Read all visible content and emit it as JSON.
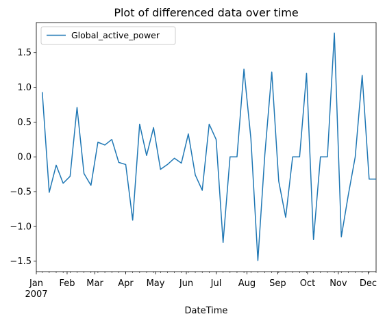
{
  "chart_data": {
    "type": "line",
    "title": "Plot of differenced data over time",
    "xlabel": "DateTime",
    "ylabel": "",
    "legend": {
      "placement": "top-left",
      "entries": [
        "Global_active_power"
      ]
    },
    "grid": false,
    "xlim": [
      "2007-01-01",
      "2007-12-09"
    ],
    "ylim": [
      -1.65,
      1.93
    ],
    "x_ticks": [
      {
        "date": "2007-01-01",
        "label": "Jan"
      },
      {
        "date": "2007-02-01",
        "label": "Feb"
      },
      {
        "date": "2007-03-01",
        "label": "Mar"
      },
      {
        "date": "2007-04-01",
        "label": "Apr"
      },
      {
        "date": "2007-05-01",
        "label": "May"
      },
      {
        "date": "2007-06-01",
        "label": "Jun"
      },
      {
        "date": "2007-07-01",
        "label": "Jul"
      },
      {
        "date": "2007-08-01",
        "label": "Aug"
      },
      {
        "date": "2007-09-01",
        "label": "Sep"
      },
      {
        "date": "2007-10-01",
        "label": "Oct"
      },
      {
        "date": "2007-11-01",
        "label": "Nov"
      },
      {
        "date": "2007-12-01",
        "label": "Dec"
      }
    ],
    "x_year_label": "2007",
    "y_ticks": [
      -1.5,
      -1.0,
      -0.5,
      0.0,
      0.5,
      1.0,
      1.5
    ],
    "y_tick_labels": [
      "−1.5",
      "−1.0",
      "−0.5",
      "0.0",
      "0.5",
      "1.0",
      "1.5"
    ],
    "series": [
      {
        "name": "Global_active_power",
        "color": "#1f77b4",
        "x": [
          "2007-01-07",
          "2007-01-14",
          "2007-01-21",
          "2007-01-28",
          "2007-02-04",
          "2007-02-11",
          "2007-02-18",
          "2007-02-25",
          "2007-03-04",
          "2007-03-11",
          "2007-03-18",
          "2007-03-25",
          "2007-04-01",
          "2007-04-08",
          "2007-04-15",
          "2007-04-22",
          "2007-04-29",
          "2007-05-06",
          "2007-05-13",
          "2007-05-20",
          "2007-05-27",
          "2007-06-03",
          "2007-06-10",
          "2007-06-17",
          "2007-06-24",
          "2007-07-01",
          "2007-07-08",
          "2007-07-15",
          "2007-07-22",
          "2007-07-29",
          "2007-08-05",
          "2007-08-12",
          "2007-08-19",
          "2007-08-26",
          "2007-09-02",
          "2007-09-09",
          "2007-09-16",
          "2007-09-23",
          "2007-09-30",
          "2007-10-07",
          "2007-10-14",
          "2007-10-21",
          "2007-10-28",
          "2007-11-04",
          "2007-11-11",
          "2007-11-18",
          "2007-11-25",
          "2007-12-02",
          "2007-12-09"
        ],
        "values": [
          0.93,
          -0.51,
          -0.12,
          -0.38,
          -0.28,
          0.71,
          -0.24,
          -0.41,
          0.21,
          0.17,
          0.25,
          -0.08,
          -0.11,
          -0.91,
          0.47,
          0.02,
          0.42,
          -0.18,
          -0.11,
          -0.02,
          -0.09,
          0.33,
          -0.26,
          -0.48,
          0.47,
          0.25,
          -1.23,
          0.0,
          0.0,
          1.26,
          0.26,
          -1.49,
          0.03,
          1.22,
          -0.35,
          -0.87,
          0.0,
          0.0,
          1.2,
          -1.19,
          0.0,
          0.0,
          1.78,
          -1.15,
          -0.55,
          0.0,
          1.17,
          -0.32,
          -0.32
        ]
      }
    ]
  }
}
